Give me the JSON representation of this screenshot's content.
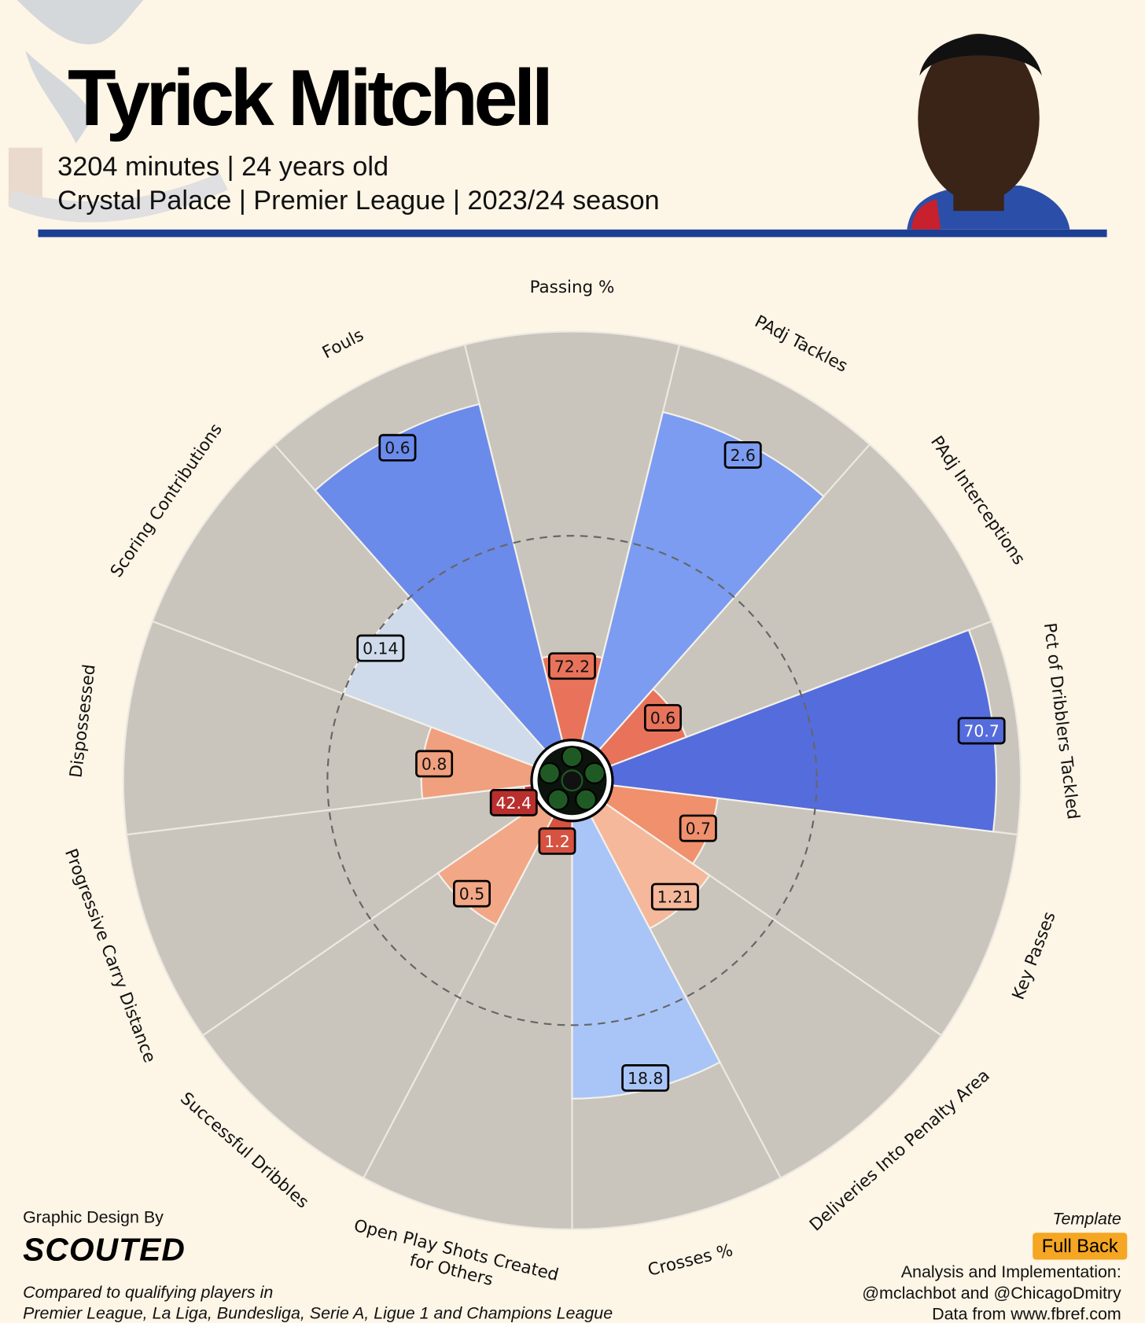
{
  "chart_data": {
    "type": "pizza",
    "title": "Tyrick Mitchell",
    "subtitle": [
      "3204 minutes | 24 years old",
      "Crystal Palace | Premier League | 2023/24 season"
    ],
    "categories": [
      "Passing %",
      "PAdj Tackles",
      "PAdj Interceptions",
      "Pct of Dribblers Tackled",
      "Key Passes",
      "Deliveries Into Penalty Area",
      "Crosses %",
      "Open Play Shots Created\nfor Others",
      "Successful Dribbles",
      "Progressive Carry Distance",
      "Dispossessed",
      "Scoring Contributions",
      "Fouls"
    ],
    "values": [
      21,
      83,
      20,
      94,
      26,
      31,
      68,
      8,
      30,
      2,
      27,
      50,
      85
    ],
    "stats": [
      72.2,
      2.6,
      0.6,
      70.7,
      0.7,
      1.21,
      18.8,
      1.2,
      0.5,
      42.4,
      0.8,
      0.14,
      0.6
    ],
    "colors": [
      "#e8735a",
      "#7b9cf0",
      "#e8735a",
      "#556cdc",
      "#f0906c",
      "#f5b89a",
      "#a9c5f7",
      "#d65241",
      "#f2a786",
      "#b82f2e",
      "#f0a07e",
      "#cfdbea",
      "#6b8bea"
    ],
    "ylim": [
      0,
      100
    ],
    "reference_line": 50,
    "footer": {
      "credit": "Graphic Design By",
      "brand": "SCOUTED",
      "note": [
        "Compared to qualifying players in",
        "Premier League, La Liga, Bundesliga, Serie A, Ligue 1 and Champions League"
      ],
      "template_label": "Template",
      "template": "Full Back",
      "analysis": [
        "Analysis and Implementation:",
        "@mclachbot and @ChicagoDmitry",
        "Data from www.fbref.com"
      ]
    }
  }
}
